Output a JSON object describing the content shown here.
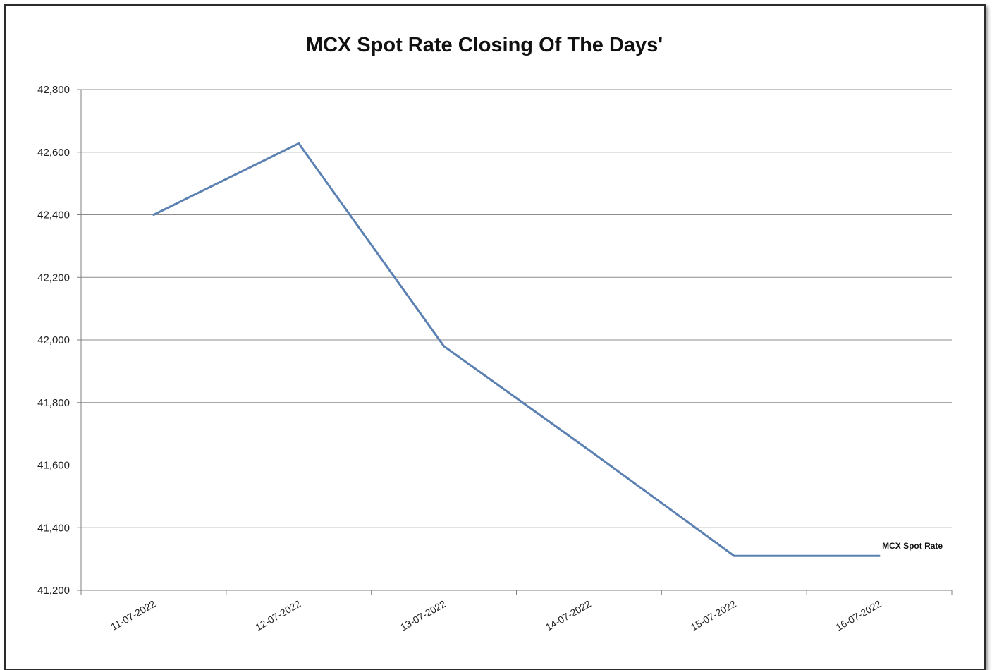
{
  "chart_data": {
    "type": "line",
    "title": "MCX Spot Rate Closing Of The Days'",
    "xlabel": "",
    "ylabel": "",
    "categories": [
      "11-07-2022",
      "12-07-2022",
      "13-07-2022",
      "14-07-2022",
      "15-07-2022",
      "16-07-2022"
    ],
    "series": [
      {
        "name": "MCX Spot Rate",
        "values": [
          42400,
          42628,
          41980,
          41648,
          41310,
          41310
        ],
        "color": "#5b80b2"
      }
    ],
    "ylim": [
      41200,
      42800
    ],
    "yticks": [
      41200,
      41400,
      41600,
      41800,
      42000,
      42200,
      42400,
      42600,
      42800
    ],
    "ytick_labels": [
      "41,200",
      "41,400",
      "41,600",
      "41,800",
      "42,000",
      "42,200",
      "42,400",
      "42,600",
      "42,800"
    ],
    "grid": true,
    "legend": "end-of-line label",
    "gridline_color": "#8c8c8c",
    "axis_color": "#7f7f7f"
  }
}
